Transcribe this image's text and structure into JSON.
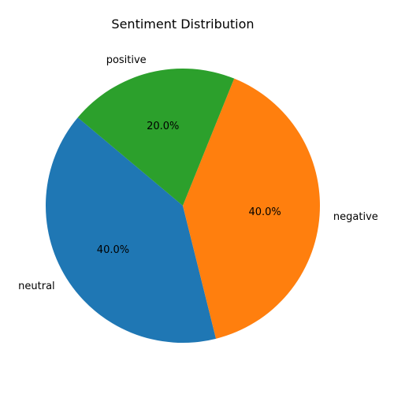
{
  "chart_data": {
    "type": "pie",
    "title": "Sentiment Distribution",
    "start_angle_deg": 140,
    "direction": "counterclockwise",
    "slices": [
      {
        "label": "neutral",
        "value": 40.0,
        "pct_label": "40.0%",
        "color": "#1f77b4"
      },
      {
        "label": "negative",
        "value": 40.0,
        "pct_label": "40.0%",
        "color": "#ff7f0e"
      },
      {
        "label": "positive",
        "value": 20.0,
        "pct_label": "20.0%",
        "color": "#2ca02c"
      }
    ]
  }
}
